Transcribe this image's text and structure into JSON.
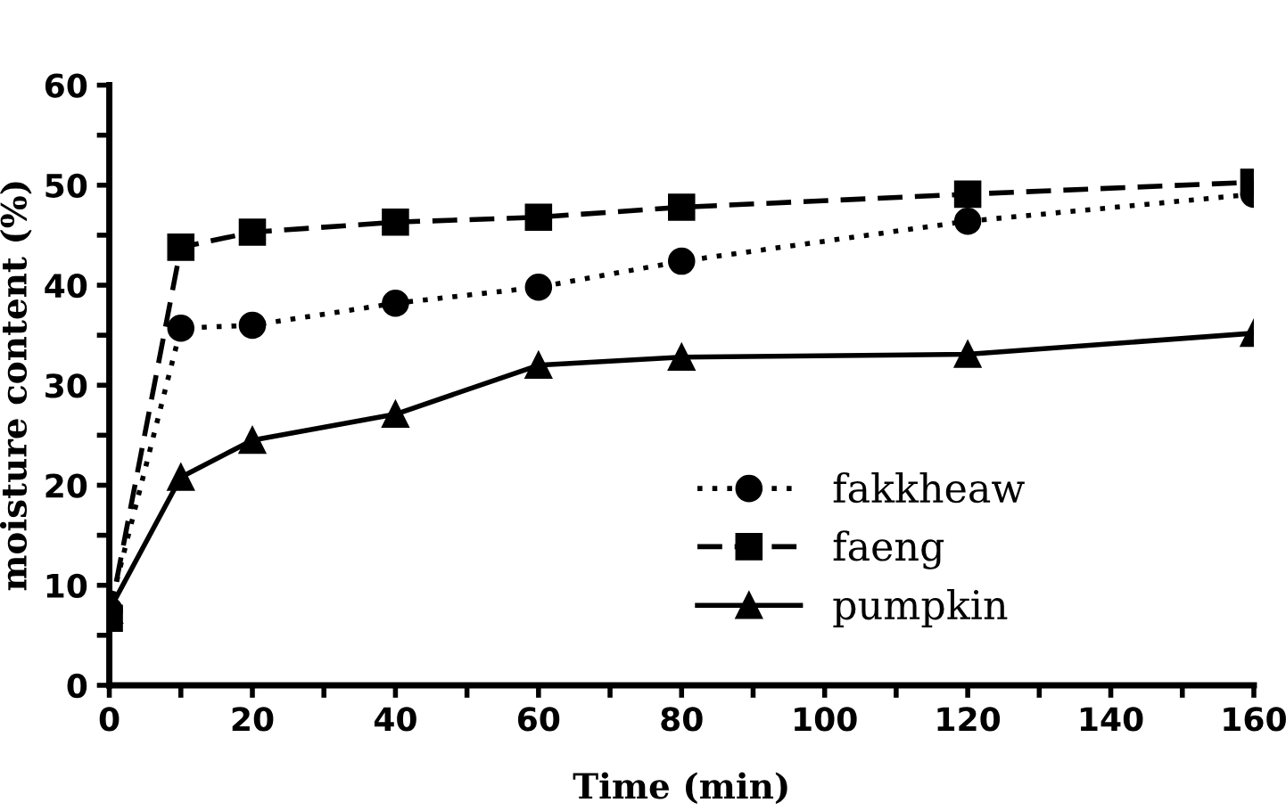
{
  "chart_data": {
    "type": "line",
    "xlabel": "Time (min)",
    "ylabel": "moisture content (%)",
    "x": [
      0,
      10,
      20,
      40,
      60,
      80,
      120,
      160
    ],
    "series": [
      {
        "name": "fakkheaw",
        "color": "#000000",
        "marker": "circle",
        "line_style": "dotted",
        "values": [
          7.5,
          35.7,
          36.0,
          38.2,
          39.8,
          42.4,
          46.4,
          49.1
        ]
      },
      {
        "name": "faeng",
        "color": "#000000",
        "marker": "square",
        "line_style": "dashed",
        "values": [
          6.7,
          43.8,
          45.3,
          46.3,
          46.8,
          47.8,
          49.1,
          50.3
        ]
      },
      {
        "name": "pumpkin",
        "color": "#000000",
        "marker": "triangle",
        "line_style": "solid",
        "values": [
          7.5,
          20.8,
          24.5,
          27.1,
          32.0,
          32.8,
          33.1,
          35.2
        ]
      }
    ],
    "xlim": [
      0,
      160
    ],
    "ylim": [
      0,
      60
    ],
    "xticks": [
      0,
      {
        "value": 10,
        "label": null
      },
      20,
      {
        "value": 30,
        "label": null
      },
      40,
      {
        "value": 50,
        "label": null
      },
      60,
      {
        "value": 70,
        "label": null
      },
      80,
      {
        "value": 90,
        "label": null
      },
      100,
      {
        "value": 110,
        "label": null
      },
      120,
      {
        "value": 130,
        "label": null
      },
      140,
      {
        "value": 150,
        "label": null
      },
      160
    ],
    "yticks": [
      0,
      {
        "value": 5,
        "label": null
      },
      10,
      {
        "value": 15,
        "label": null
      },
      20,
      {
        "value": 25,
        "label": null
      },
      30,
      {
        "value": 35,
        "label": null
      },
      40,
      {
        "value": 45,
        "label": null
      },
      50,
      {
        "value": 55,
        "label": null
      },
      60
    ],
    "grid": false,
    "legend": "bottom right"
  }
}
